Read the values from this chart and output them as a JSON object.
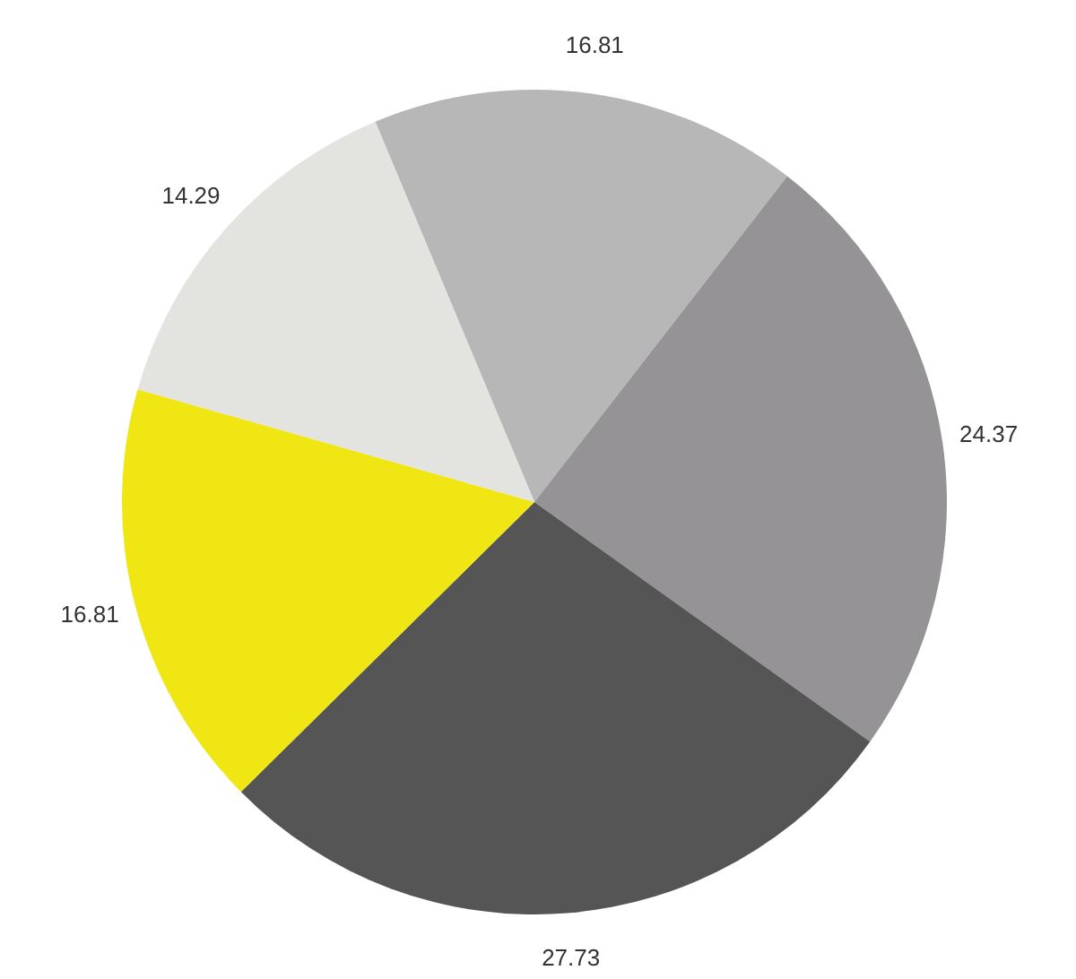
{
  "chart_data": {
    "type": "pie",
    "categories": [
      null,
      null,
      null,
      null,
      null
    ],
    "values": [
      16.81,
      24.37,
      27.73,
      16.81,
      14.29
    ],
    "colors": [
      "#b8b7b8",
      "#959395",
      "#555555",
      "#f0e614",
      "#e3e3e0"
    ],
    "data_labels": true
  }
}
